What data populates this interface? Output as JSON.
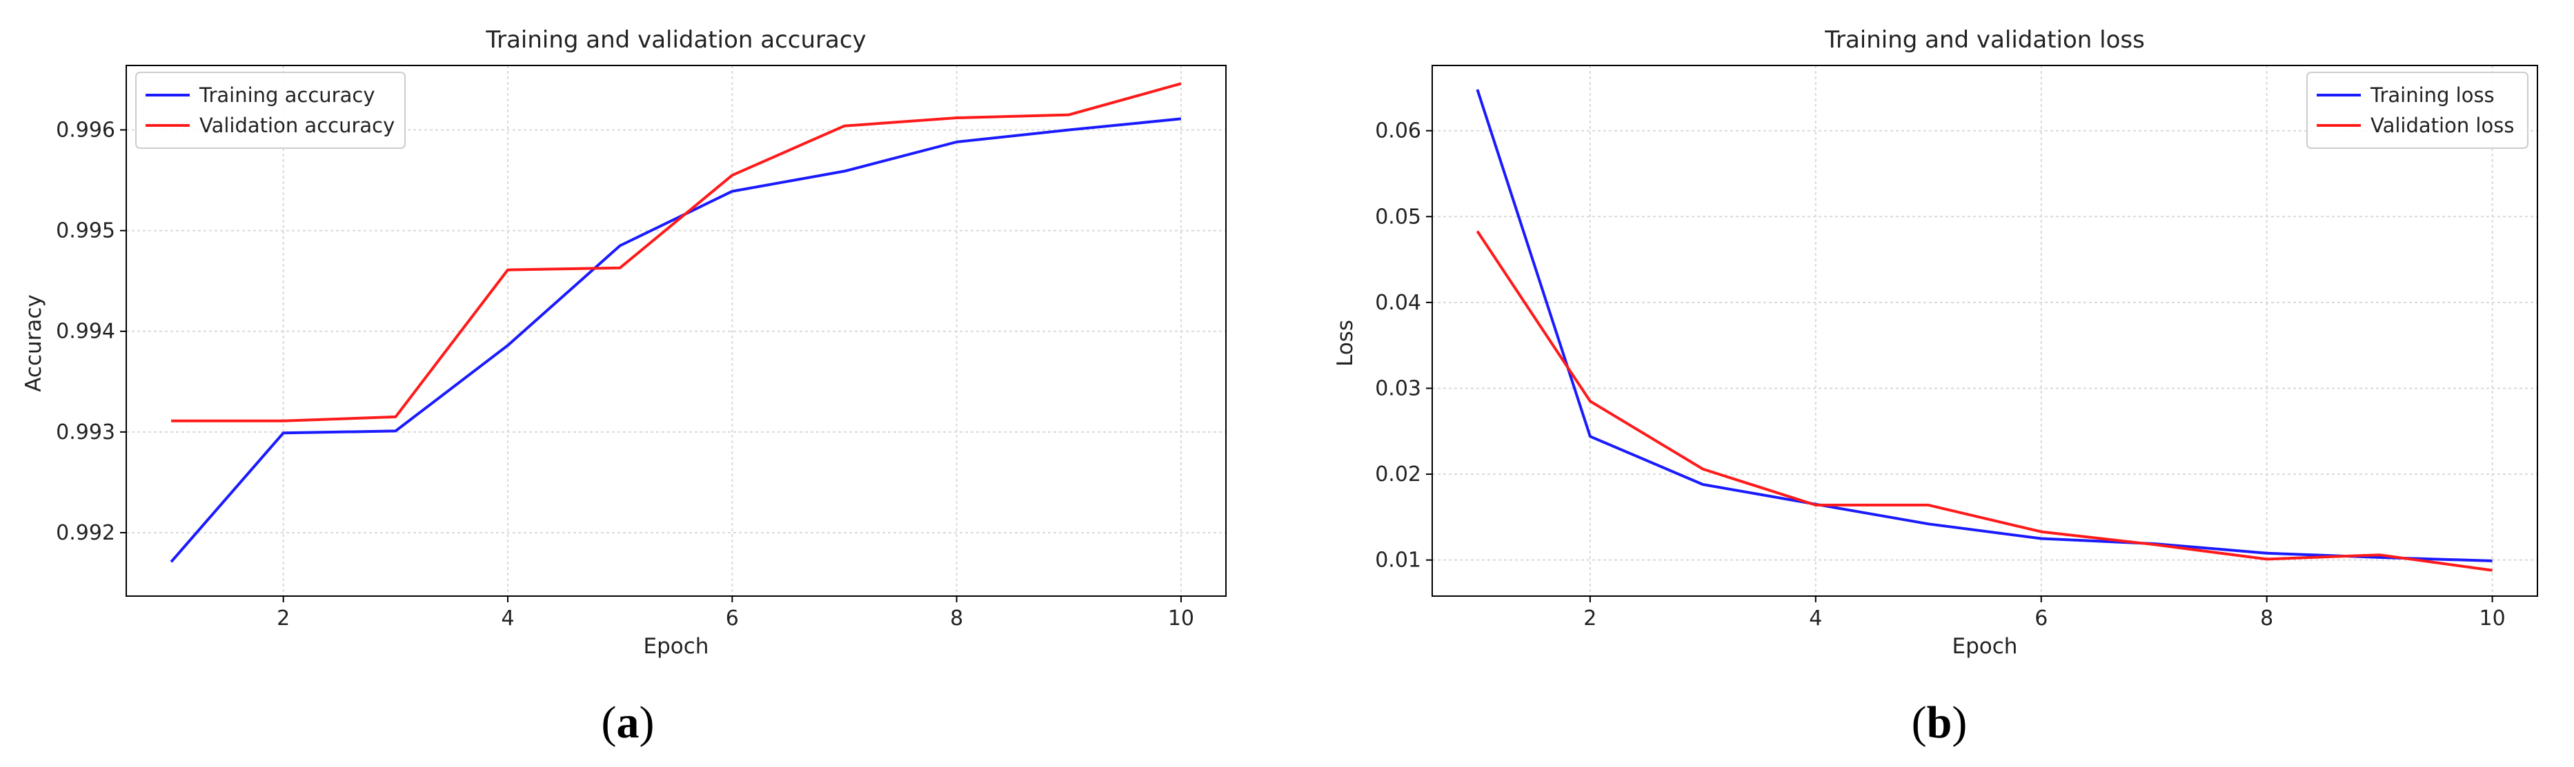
{
  "chart_data": [
    {
      "type": "line",
      "panel": "a",
      "title": "Training and validation accuracy",
      "xlabel": "Epoch",
      "ylabel": "Accuracy",
      "x": [
        1,
        2,
        3,
        4,
        5,
        6,
        7,
        8,
        9,
        10
      ],
      "xlim": [
        0.6,
        10.4
      ],
      "ylim": [
        0.99137,
        0.99664
      ],
      "xticks": [
        2,
        4,
        6,
        8,
        10
      ],
      "yticks": [
        0.992,
        0.993,
        0.994,
        0.995,
        0.996
      ],
      "ytick_labels": [
        "0.992",
        "0.993",
        "0.994",
        "0.995",
        "0.996"
      ],
      "grid": true,
      "legend_position": "upper-left",
      "series": [
        {
          "name": "Training accuracy",
          "color": "#1a1aff",
          "values": [
            0.99171,
            0.99299,
            0.99301,
            0.99386,
            0.99485,
            0.99539,
            0.99559,
            0.99588,
            0.996,
            0.99611
          ]
        },
        {
          "name": "Validation accuracy",
          "color": "#ff1a1a",
          "values": [
            0.99311,
            0.99311,
            0.99315,
            0.99461,
            0.99463,
            0.99555,
            0.99604,
            0.99612,
            0.99615,
            0.99646
          ]
        }
      ],
      "caption": "a"
    },
    {
      "type": "line",
      "panel": "b",
      "title": "Training and validation loss",
      "xlabel": "Epoch",
      "ylabel": "Loss",
      "x": [
        1,
        2,
        3,
        4,
        5,
        6,
        7,
        8,
        9,
        10
      ],
      "xlim": [
        0.6,
        10.4
      ],
      "ylim": [
        0.0058,
        0.0676
      ],
      "xticks": [
        2,
        4,
        6,
        8,
        10
      ],
      "yticks": [
        0.01,
        0.02,
        0.03,
        0.04,
        0.05,
        0.06
      ],
      "ytick_labels": [
        "0.01",
        "0.02",
        "0.03",
        "0.04",
        "0.05",
        "0.06"
      ],
      "grid": true,
      "legend_position": "upper-right",
      "series": [
        {
          "name": "Training loss",
          "color": "#1a1aff",
          "values": [
            0.0648,
            0.0244,
            0.0188,
            0.0165,
            0.0142,
            0.0125,
            0.0119,
            0.0108,
            0.0103,
            0.0099
          ]
        },
        {
          "name": "Validation loss",
          "color": "#ff1a1a",
          "values": [
            0.0483,
            0.0285,
            0.0206,
            0.0164,
            0.0164,
            0.0133,
            0.0118,
            0.0101,
            0.0106,
            0.0088
          ]
        }
      ],
      "caption": "b"
    }
  ]
}
